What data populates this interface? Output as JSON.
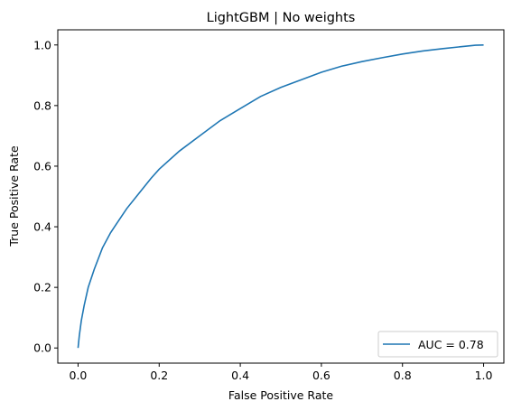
{
  "colors": {
    "line": "#1f77b4",
    "legend_border": "#cccccc",
    "axes": "#000000"
  },
  "chart_data": {
    "type": "line",
    "title": "LightGBM | No weights",
    "xlabel": "False Positive Rate",
    "ylabel": "True Positive Rate",
    "xlim": [
      -0.05,
      1.05
    ],
    "ylim": [
      -0.05,
      1.05
    ],
    "xticks": [
      0.0,
      0.2,
      0.4,
      0.6,
      0.8,
      1.0
    ],
    "yticks": [
      0.0,
      0.2,
      0.4,
      0.6,
      0.8,
      1.0
    ],
    "xtick_labels": [
      "0.0",
      "0.2",
      "0.4",
      "0.6",
      "0.8",
      "1.0"
    ],
    "ytick_labels": [
      "0.0",
      "0.2",
      "0.4",
      "0.6",
      "0.8",
      "1.0"
    ],
    "grid": false,
    "legend_position": "lower-right",
    "series": [
      {
        "name": "AUC = 0.78",
        "x": [
          0.0,
          0.003,
          0.008,
          0.015,
          0.025,
          0.04,
          0.06,
          0.08,
          0.1,
          0.12,
          0.15,
          0.18,
          0.2,
          0.25,
          0.3,
          0.35,
          0.4,
          0.45,
          0.5,
          0.55,
          0.6,
          0.65,
          0.7,
          0.75,
          0.8,
          0.85,
          0.9,
          0.95,
          0.98,
          1.0
        ],
        "y": [
          0.0,
          0.04,
          0.09,
          0.14,
          0.2,
          0.26,
          0.33,
          0.38,
          0.42,
          0.46,
          0.51,
          0.56,
          0.59,
          0.65,
          0.7,
          0.75,
          0.79,
          0.83,
          0.86,
          0.885,
          0.91,
          0.93,
          0.945,
          0.958,
          0.97,
          0.98,
          0.988,
          0.995,
          0.999,
          1.0
        ]
      }
    ]
  }
}
